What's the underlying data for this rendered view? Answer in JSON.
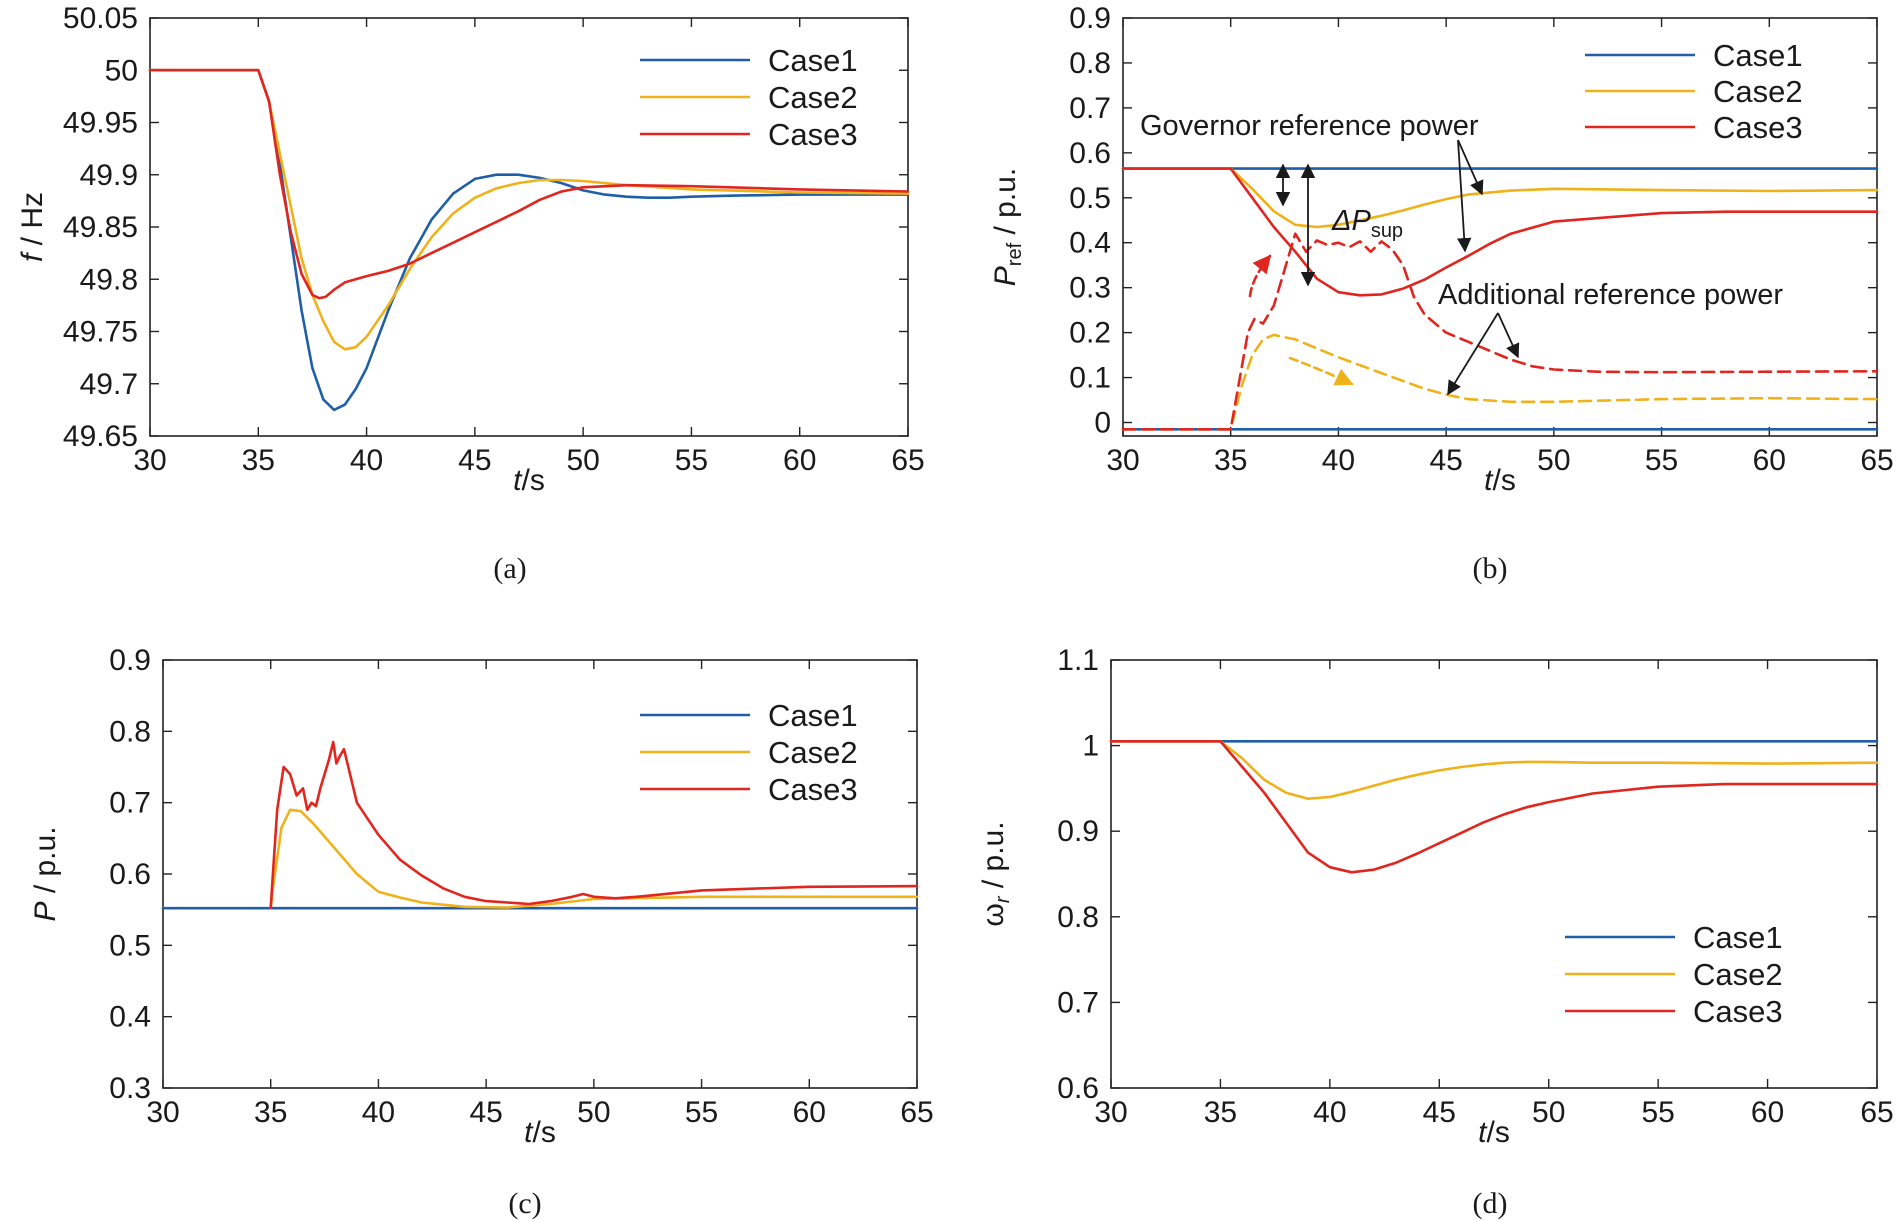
{
  "figure_title": "",
  "chart_data": [
    {
      "id": "a",
      "type": "line",
      "caption": "(a)",
      "xlabel": "t/s",
      "ylabel": "f / Hz",
      "xlim": [
        30,
        65
      ],
      "ylim": [
        49.65,
        50.05
      ],
      "xticks": [
        "30",
        "35",
        "40",
        "45",
        "50",
        "55",
        "60",
        "65"
      ],
      "yticks": [
        "49.65",
        "49.7",
        "49.75",
        "49.8",
        "49.85",
        "49.9",
        "49.95",
        "50",
        "50.05"
      ],
      "legend": [
        "Case1",
        "Case2",
        "Case3"
      ],
      "legend_position": "top-right",
      "series": [
        {
          "name": "Case1",
          "color": "#1f5fa8",
          "x": [
            30,
            35,
            35.5,
            36,
            36.5,
            37,
            37.5,
            38,
            38.5,
            39,
            39.5,
            40,
            41,
            42,
            43,
            44,
            45,
            46,
            47,
            48,
            49,
            50,
            51,
            52,
            53,
            54,
            55,
            57,
            60,
            65
          ],
          "y": [
            50.0,
            50.0,
            49.97,
            49.91,
            49.84,
            49.77,
            49.715,
            49.685,
            49.675,
            49.68,
            49.695,
            49.715,
            49.77,
            49.82,
            49.857,
            49.882,
            49.896,
            49.9,
            49.9,
            49.897,
            49.892,
            49.885,
            49.881,
            49.879,
            49.878,
            49.878,
            49.879,
            49.88,
            49.881,
            49.881
          ]
        },
        {
          "name": "Case2",
          "color": "#f0b21a",
          "x": [
            30,
            35,
            35.5,
            36,
            36.5,
            37,
            37.5,
            38,
            38.5,
            39,
            39.5,
            40,
            41,
            42,
            43,
            44,
            45,
            46,
            47,
            48,
            49,
            50,
            52,
            55,
            60,
            65
          ],
          "y": [
            50.0,
            50.0,
            49.97,
            49.92,
            49.87,
            49.82,
            49.785,
            49.76,
            49.74,
            49.733,
            49.735,
            49.745,
            49.775,
            49.81,
            49.84,
            49.863,
            49.878,
            49.887,
            49.892,
            49.895,
            49.895,
            49.894,
            49.89,
            49.886,
            49.883,
            49.882
          ]
        },
        {
          "name": "Case3",
          "color": "#e0261f",
          "x": [
            30,
            35,
            35.5,
            36,
            36.5,
            37,
            37.5,
            37.8,
            38.1,
            38.5,
            39,
            39.5,
            40,
            41,
            42,
            43,
            44,
            45,
            46,
            47,
            48,
            49,
            50,
            52,
            55,
            60,
            65
          ],
          "y": [
            50.0,
            50.0,
            49.97,
            49.9,
            49.845,
            49.805,
            49.785,
            49.782,
            49.783,
            49.79,
            49.797,
            49.8,
            49.803,
            49.808,
            49.815,
            49.825,
            49.835,
            49.845,
            49.855,
            49.865,
            49.876,
            49.884,
            49.888,
            49.89,
            49.889,
            49.886,
            49.884
          ]
        }
      ]
    },
    {
      "id": "b",
      "type": "line",
      "caption": "(b)",
      "xlabel": "t/s",
      "ylabel": "P_ref / p.u.",
      "xlim": [
        30,
        65
      ],
      "ylim": [
        -0.03,
        0.9
      ],
      "xticks": [
        "30",
        "35",
        "40",
        "45",
        "50",
        "55",
        "60",
        "65"
      ],
      "yticks": [
        "0",
        "0.1",
        "0.2",
        "0.3",
        "0.4",
        "0.5",
        "0.6",
        "0.7",
        "0.8",
        "0.9"
      ],
      "legend": [
        "Case1",
        "Case2",
        "Case3"
      ],
      "legend_position": "top-right",
      "annotations": {
        "governor": "Governor reference power",
        "additional": "Additional reference power",
        "delta": "ΔP",
        "delta_sub": "sup"
      },
      "series": [
        {
          "name": "Case1",
          "color": "#1f5fa8",
          "style": "solid",
          "x": [
            30,
            65
          ],
          "y": [
            0.565,
            0.565
          ]
        },
        {
          "name": "Case1 additional",
          "color": "#1f5fa8",
          "style": "solid",
          "x": [
            30,
            65
          ],
          "y": [
            -0.015,
            -0.015
          ]
        },
        {
          "name": "Case2",
          "color": "#f0b21a",
          "style": "solid",
          "x": [
            30,
            35,
            36,
            37,
            38,
            39,
            40,
            41,
            42,
            43,
            44,
            45,
            46,
            48,
            50,
            55,
            60,
            65
          ],
          "y": [
            0.565,
            0.565,
            0.52,
            0.47,
            0.44,
            0.435,
            0.44,
            0.45,
            0.46,
            0.472,
            0.485,
            0.497,
            0.507,
            0.516,
            0.52,
            0.517,
            0.515,
            0.517
          ]
        },
        {
          "name": "Case3",
          "color": "#e0261f",
          "style": "solid",
          "x": [
            30,
            35,
            36,
            37,
            38,
            39,
            40,
            41,
            42,
            43,
            44,
            45,
            46,
            47,
            48,
            50,
            55,
            58,
            60,
            65
          ],
          "y": [
            0.565,
            0.565,
            0.5,
            0.435,
            0.38,
            0.32,
            0.29,
            0.283,
            0.285,
            0.298,
            0.318,
            0.345,
            0.37,
            0.397,
            0.42,
            0.447,
            0.466,
            0.469,
            0.469,
            0.469
          ]
        },
        {
          "name": "Case2 additional",
          "color": "#f0b21a",
          "style": "dashed",
          "x": [
            30,
            35,
            35.5,
            36,
            36.5,
            37,
            38,
            39,
            40,
            42,
            44,
            45,
            46,
            48,
            50,
            55,
            60,
            65
          ],
          "y": [
            -0.015,
            -0.015,
            0.08,
            0.15,
            0.185,
            0.195,
            0.185,
            0.165,
            0.145,
            0.11,
            0.075,
            0.062,
            0.052,
            0.046,
            0.046,
            0.052,
            0.054,
            0.052
          ]
        },
        {
          "name": "Case3 additional",
          "color": "#e0261f",
          "style": "dashed",
          "x": [
            30,
            35,
            35.5,
            35.8,
            36.1,
            36.5,
            37,
            37.5,
            38,
            38.5,
            39,
            39.5,
            40,
            40.5,
            41,
            41.5,
            42,
            42.5,
            43,
            43.5,
            44,
            45,
            46,
            47,
            48,
            49,
            50,
            52,
            55,
            60,
            65
          ],
          "y": [
            -0.015,
            -0.015,
            0.12,
            0.2,
            0.23,
            0.22,
            0.26,
            0.34,
            0.42,
            0.38,
            0.405,
            0.395,
            0.4,
            0.39,
            0.403,
            0.38,
            0.403,
            0.385,
            0.35,
            0.28,
            0.24,
            0.2,
            0.18,
            0.16,
            0.14,
            0.125,
            0.118,
            0.113,
            0.112,
            0.113,
            0.114
          ]
        }
      ]
    },
    {
      "id": "c",
      "type": "line",
      "caption": "(c)",
      "xlabel": "t/s",
      "ylabel": "P / p.u.",
      "xlim": [
        30,
        65
      ],
      "ylim": [
        0.3,
        0.9
      ],
      "xticks": [
        "30",
        "35",
        "40",
        "45",
        "50",
        "55",
        "60",
        "65"
      ],
      "yticks": [
        "0.3",
        "0.4",
        "0.5",
        "0.6",
        "0.7",
        "0.8",
        "0.9"
      ],
      "legend": [
        "Case1",
        "Case2",
        "Case3"
      ],
      "legend_position": "top-right",
      "series": [
        {
          "name": "Case1",
          "color": "#1f5fa8",
          "x": [
            30,
            65
          ],
          "y": [
            0.552,
            0.552
          ]
        },
        {
          "name": "Case2",
          "color": "#f0b21a",
          "x": [
            35,
            35.1,
            35.5,
            35.9,
            36.4,
            37,
            38,
            39,
            40,
            41,
            42,
            44,
            46,
            48,
            50,
            55,
            60,
            65
          ],
          "y": [
            0.552,
            0.58,
            0.665,
            0.69,
            0.688,
            0.67,
            0.635,
            0.6,
            0.575,
            0.567,
            0.56,
            0.554,
            0.553,
            0.558,
            0.565,
            0.568,
            0.568,
            0.568
          ]
        },
        {
          "name": "Case3",
          "color": "#e0261f",
          "x": [
            35,
            35.1,
            35.3,
            35.6,
            35.9,
            36.2,
            36.5,
            36.7,
            36.9,
            37.1,
            37.3,
            37.5,
            37.7,
            37.9,
            38.05,
            38.2,
            38.4,
            38.6,
            39,
            40,
            41,
            42,
            43,
            44,
            45,
            46,
            47,
            48,
            49,
            49.5,
            50,
            51,
            52,
            55,
            60,
            65
          ],
          "y": [
            0.552,
            0.6,
            0.69,
            0.75,
            0.74,
            0.71,
            0.72,
            0.69,
            0.7,
            0.695,
            0.72,
            0.74,
            0.76,
            0.785,
            0.755,
            0.765,
            0.775,
            0.75,
            0.7,
            0.655,
            0.62,
            0.598,
            0.58,
            0.568,
            0.562,
            0.56,
            0.558,
            0.562,
            0.568,
            0.572,
            0.568,
            0.566,
            0.568,
            0.577,
            0.582,
            0.583
          ]
        }
      ]
    },
    {
      "id": "d",
      "type": "line",
      "caption": "(d)",
      "xlabel": "t/s",
      "ylabel": "ω_r / p.u.",
      "xlim": [
        30,
        65
      ],
      "ylim": [
        0.6,
        1.1
      ],
      "xticks": [
        "30",
        "35",
        "40",
        "45",
        "50",
        "55",
        "60",
        "65"
      ],
      "yticks": [
        "0.6",
        "0.7",
        "0.8",
        "0.9",
        "1",
        "1.1"
      ],
      "legend": [
        "Case1",
        "Case2",
        "Case3"
      ],
      "legend_position": "bottom-right",
      "series": [
        {
          "name": "Case1",
          "color": "#1f5fa8",
          "x": [
            30,
            65
          ],
          "y": [
            1.005,
            1.005
          ]
        },
        {
          "name": "Case2",
          "color": "#f0b21a",
          "x": [
            30,
            35,
            36,
            37,
            38,
            39,
            40,
            41,
            42,
            43,
            44,
            45,
            46,
            47,
            48,
            49,
            50,
            52,
            55,
            60,
            65
          ],
          "y": [
            1.005,
            1.005,
            0.985,
            0.96,
            0.945,
            0.938,
            0.94,
            0.946,
            0.953,
            0.96,
            0.966,
            0.971,
            0.975,
            0.978,
            0.98,
            0.981,
            0.981,
            0.98,
            0.98,
            0.979,
            0.98
          ]
        },
        {
          "name": "Case3",
          "color": "#e0261f",
          "x": [
            30,
            35,
            36,
            37,
            38,
            39,
            40,
            41,
            42,
            43,
            44,
            45,
            46,
            47,
            48,
            49,
            50,
            52,
            55,
            58,
            60,
            65
          ],
          "y": [
            1.005,
            1.005,
            0.975,
            0.945,
            0.91,
            0.875,
            0.858,
            0.852,
            0.855,
            0.863,
            0.874,
            0.886,
            0.898,
            0.91,
            0.92,
            0.928,
            0.934,
            0.944,
            0.952,
            0.955,
            0.955,
            0.955
          ]
        }
      ]
    }
  ]
}
